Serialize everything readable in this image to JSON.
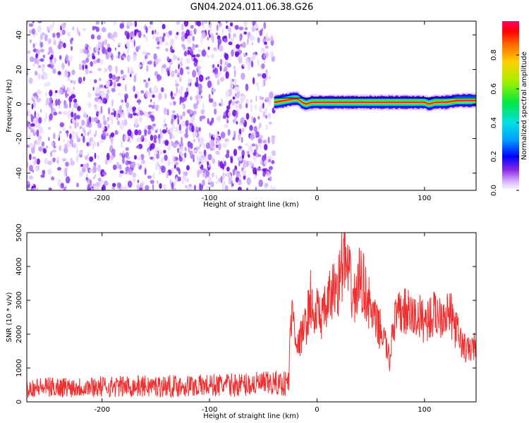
{
  "title": "GN04.2024.011.06.38.G26",
  "colors": {
    "snr_line": "#f03030",
    "ridge_core": "#ff2a2a",
    "scatter_light": "#d9b8ff",
    "scatter_dark": "#6a00e6"
  },
  "chart_data": [
    {
      "type": "heatmap",
      "title": "",
      "xlabel": "Height of straight line (km)",
      "ylabel": "Frequency (Hz)",
      "xlim": [
        -270,
        148
      ],
      "ylim": [
        -50,
        48
      ],
      "xticks": [
        -200,
        -100,
        0,
        100
      ],
      "xtick_labels": [
        "-200",
        "-100",
        "0",
        "100"
      ],
      "yticks": [
        -40,
        -20,
        0,
        20,
        40
      ],
      "ytick_labels": [
        "-40",
        "-20",
        "0",
        "20",
        "40"
      ],
      "noise_region_km": [
        -270,
        -40
      ],
      "signal_start_km": -40,
      "ridge": {
        "x": [
          -40,
          -30,
          -22,
          -18,
          -14,
          -10,
          -5,
          0,
          10,
          30,
          60,
          90,
          100,
          104,
          110,
          120,
          130,
          140,
          148
        ],
        "freq_hz": [
          1,
          2,
          3,
          3,
          1,
          0,
          1,
          1,
          1,
          1,
          1,
          1,
          1,
          0,
          1,
          1,
          2,
          2,
          2
        ]
      },
      "colorbar": {
        "label": "Normalized spectral amplitude",
        "ticks": [
          0.0,
          0.2,
          0.4,
          0.6,
          0.8
        ],
        "tick_labels": [
          "0.0",
          "0.2",
          "0.4",
          "0.6",
          "0.8"
        ],
        "range": [
          0,
          1
        ]
      },
      "grid": false
    },
    {
      "type": "line",
      "title": "",
      "xlabel": "Height of straight line (km)",
      "ylabel": "SNR (10 * v/v)",
      "xlim": [
        -270,
        148
      ],
      "ylim": [
        0,
        5000
      ],
      "xticks": [
        -200,
        -100,
        0,
        100
      ],
      "xtick_labels": [
        "-200",
        "-100",
        "0",
        "100"
      ],
      "yticks": [
        0,
        1000,
        2000,
        3000,
        4000,
        5000
      ],
      "ytick_labels": [
        "0",
        "1000",
        "2000",
        "3000",
        "4000",
        "5000"
      ],
      "series": [
        {
          "x": [
            -270,
            -250,
            -230,
            -200,
            -170,
            -140,
            -110,
            -80,
            -60,
            -50,
            -40,
            -30,
            -26,
            -25,
            -22,
            -18,
            -14,
            -10,
            -6,
            -3,
            0,
            5,
            10,
            15,
            20,
            25,
            30,
            35,
            40,
            45,
            50,
            55,
            60,
            65,
            68,
            70,
            75,
            80,
            85,
            90,
            95,
            100,
            105,
            110,
            115,
            120,
            125,
            130,
            135,
            140,
            145,
            148
          ],
          "y": [
            420,
            430,
            440,
            450,
            460,
            470,
            480,
            500,
            520,
            530,
            540,
            550,
            600,
            2300,
            2600,
            1600,
            2000,
            2300,
            3100,
            2300,
            2700,
            2500,
            2900,
            3300,
            3500,
            4300,
            3600,
            3000,
            3700,
            3300,
            2700,
            2300,
            2100,
            1600,
            1100,
            2300,
            2500,
            2700,
            2600,
            2500,
            2500,
            2400,
            2500,
            2600,
            2600,
            2700,
            2500,
            2100,
            1700,
            1500,
            1600,
            1700
          ]
        }
      ],
      "grid": false
    }
  ]
}
